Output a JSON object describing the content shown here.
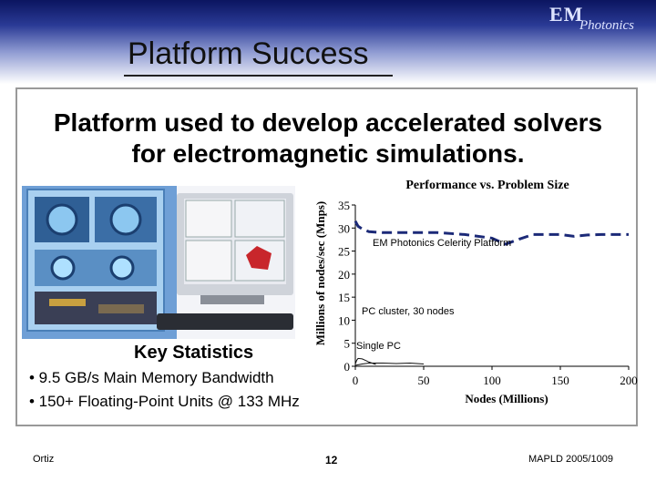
{
  "logo": {
    "line1": "EM",
    "line2": "Photonics"
  },
  "slide_title": "Platform Success",
  "subtitle_line1": "Platform used to develop accelerated solvers",
  "subtitle_line2": "for electromagnetic simulations.",
  "key_stats": {
    "title": "Key Statistics",
    "items": [
      "• 9.5 GB/s Main Memory Bandwidth",
      "• 150+ Floating-Point Units @ 133 MHz"
    ]
  },
  "footer": {
    "author": "Ortiz",
    "page": "12",
    "event": "MAPLD 2005/1009"
  },
  "chart_data": {
    "type": "line",
    "title": "Performance vs. Problem Size",
    "xlabel": "Nodes (Millions)",
    "ylabel": "Millions of nodes/sec (Mnps)",
    "xlim": [
      0,
      200
    ],
    "ylim": [
      0,
      35
    ],
    "xticks": [
      "0",
      "50",
      "100",
      "150",
      "200"
    ],
    "yticks": [
      "0",
      "5",
      "10",
      "15",
      "20",
      "25",
      "30",
      "35"
    ],
    "grid": false,
    "series": [
      {
        "name": "EM Photonics Celerity Platform",
        "style": "dashed",
        "color": "#1c2a78",
        "x": [
          0,
          2,
          5,
          10,
          20,
          40,
          60,
          80,
          100,
          110,
          120,
          130,
          140,
          150,
          160,
          170,
          180,
          190,
          200
        ],
        "y": [
          31.5,
          30.4,
          29.8,
          29.2,
          29.0,
          29.0,
          29.0,
          28.6,
          27.8,
          26.5,
          27.6,
          28.6,
          28.6,
          28.6,
          28.2,
          28.5,
          28.6,
          28.6,
          28.6
        ]
      },
      {
        "name": "PC cluster, 30 nodes",
        "style": "solid",
        "color": "#111111",
        "x": [
          0,
          5,
          10,
          20,
          30,
          40,
          50
        ],
        "y": [
          0.2,
          0.5,
          0.7,
          0.7,
          0.6,
          0.7,
          0.5
        ]
      },
      {
        "name": "Single PC",
        "style": "solid",
        "color": "#111111",
        "x": [
          0,
          1,
          2,
          5,
          8,
          10,
          15
        ],
        "y": [
          0.5,
          1.3,
          1.7,
          1.6,
          1.2,
          0.9,
          0.4
        ]
      }
    ]
  }
}
